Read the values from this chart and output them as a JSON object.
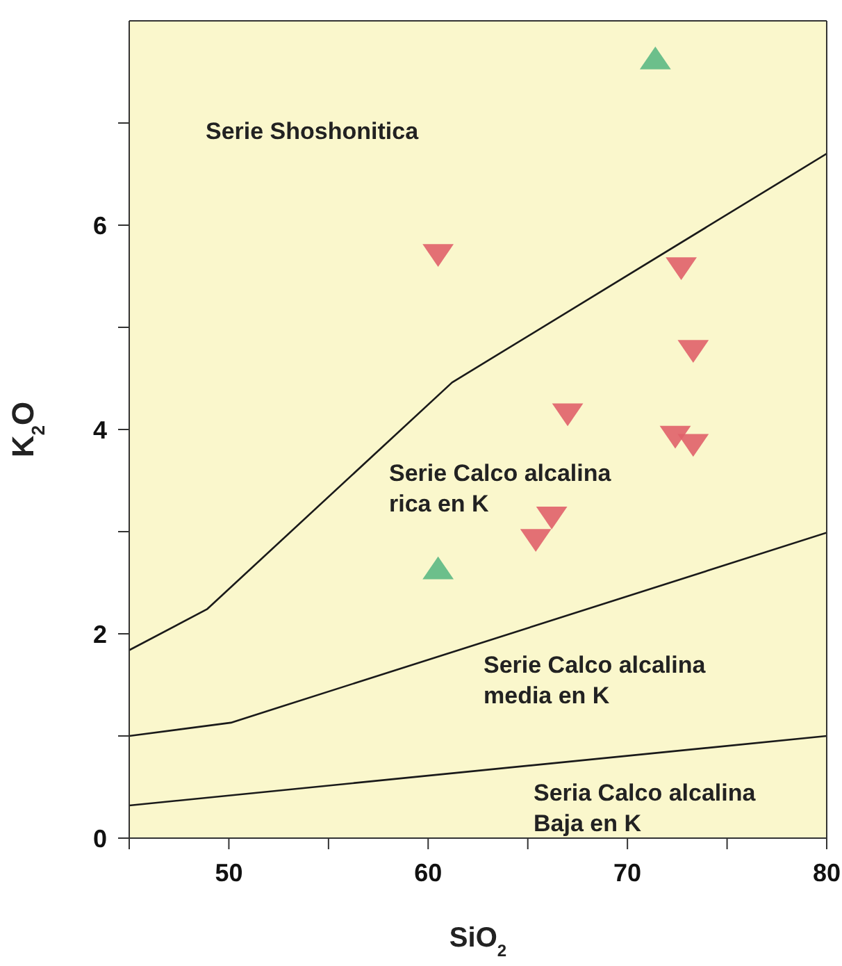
{
  "chart_data": {
    "type": "scatter",
    "xlabel": "SiO$_{2}$",
    "ylabel": "K$_{2}$O",
    "xlim": [
      45,
      80
    ],
    "xticks": [
      {
        "value": 45,
        "label": null
      },
      50,
      {
        "value": 55,
        "label": null
      },
      60,
      {
        "value": 65,
        "label": null
      },
      70,
      {
        "value": 75,
        "label": null
      },
      80
    ],
    "ylim": [
      0,
      8
    ],
    "yticks": [
      0,
      {
        "value": 1,
        "label": null
      },
      2,
      {
        "value": 3,
        "label": null
      },
      4,
      {
        "value": 5,
        "label": null
      },
      6,
      {
        "value": 7,
        "label": null
      }
    ],
    "grid": false,
    "series": [
      {
        "type": "line",
        "color": "#1a1a1a",
        "x": [
          45,
          48.9,
          61.2,
          80
        ],
        "values": [
          1.84,
          2.24,
          4.46,
          6.7
        ],
        "marker": "none"
      },
      {
        "type": "line",
        "color": "#1a1a1a",
        "x": [
          45,
          50.1,
          80
        ],
        "values": [
          1.0,
          1.13,
          2.99
        ],
        "marker": "none"
      },
      {
        "type": "line",
        "color": "#1a1a1a",
        "x": [
          45,
          80
        ],
        "values": [
          0.32,
          1.0
        ],
        "marker": "none"
      },
      {
        "type": "scatter",
        "color": "#e0606a",
        "marker": "triangle-down",
        "x": [
          60.5,
          72.7,
          73.3,
          67.0,
          72.4,
          73.3,
          66.2,
          65.4
        ],
        "values": [
          5.72,
          5.59,
          4.78,
          4.16,
          3.94,
          3.86,
          3.15,
          2.93
        ]
      },
      {
        "type": "scatter",
        "color": "#5cb884",
        "marker": "triangle",
        "x": [
          71.4,
          60.5
        ],
        "values": [
          7.62,
          2.63
        ]
      }
    ],
    "annotations": [
      "Serie Shoshonitica",
      "Serie Calco alcalina\nrica en K",
      "Serie Calco alcalina\nmedia en K",
      "Seria Calco alcalina\nBaja en K"
    ]
  }
}
